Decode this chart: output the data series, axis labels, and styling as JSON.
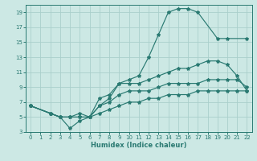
{
  "xlabel": "Humidex (Indice chaleur)",
  "xlim": [
    -0.5,
    22.5
  ],
  "ylim": [
    3,
    20
  ],
  "yticks": [
    3,
    5,
    7,
    9,
    11,
    13,
    15,
    17,
    19
  ],
  "xticks": [
    0,
    1,
    2,
    3,
    4,
    5,
    6,
    7,
    8,
    9,
    10,
    11,
    12,
    13,
    14,
    15,
    16,
    17,
    18,
    19,
    20,
    21,
    22
  ],
  "bg_color": "#cce8e4",
  "grid_color": "#aacfcb",
  "line_color": "#2a7a72",
  "series": [
    {
      "x": [
        0,
        2,
        3,
        4,
        5,
        6,
        7,
        8,
        9,
        10,
        11,
        12,
        13,
        14,
        15,
        16,
        17,
        19,
        20,
        22
      ],
      "y": [
        6.5,
        5.5,
        5.0,
        3.5,
        4.5,
        5.0,
        6.5,
        7.5,
        9.5,
        10.0,
        10.5,
        13.0,
        16.0,
        19.0,
        19.5,
        19.5,
        19.0,
        15.5,
        15.5,
        15.5
      ]
    },
    {
      "x": [
        0,
        2,
        3,
        4,
        5,
        6,
        7,
        8,
        9,
        10,
        11,
        12,
        13,
        14,
        15,
        16,
        17,
        18,
        19,
        20,
        21,
        22
      ],
      "y": [
        6.5,
        5.5,
        5.0,
        5.0,
        5.5,
        5.0,
        7.5,
        8.0,
        9.5,
        9.5,
        9.5,
        10.0,
        10.5,
        11.0,
        11.5,
        11.5,
        12.0,
        12.5,
        12.5,
        12.0,
        10.5,
        8.5
      ]
    },
    {
      "x": [
        0,
        2,
        3,
        4,
        5,
        6,
        7,
        8,
        9,
        10,
        11,
        12,
        13,
        14,
        15,
        16,
        17,
        18,
        19,
        20,
        21,
        22
      ],
      "y": [
        6.5,
        5.5,
        5.0,
        5.0,
        5.0,
        5.0,
        6.5,
        7.0,
        8.0,
        8.5,
        8.5,
        8.5,
        9.0,
        9.5,
        9.5,
        9.5,
        9.5,
        10.0,
        10.0,
        10.0,
        10.0,
        9.0
      ]
    },
    {
      "x": [
        0,
        2,
        3,
        4,
        5,
        6,
        7,
        8,
        9,
        10,
        11,
        12,
        13,
        14,
        15,
        16,
        17,
        18,
        19,
        20,
        21,
        22
      ],
      "y": [
        6.5,
        5.5,
        5.0,
        5.0,
        5.0,
        5.0,
        5.5,
        6.0,
        6.5,
        7.0,
        7.0,
        7.5,
        7.5,
        8.0,
        8.0,
        8.0,
        8.5,
        8.5,
        8.5,
        8.5,
        8.5,
        8.5
      ]
    }
  ]
}
